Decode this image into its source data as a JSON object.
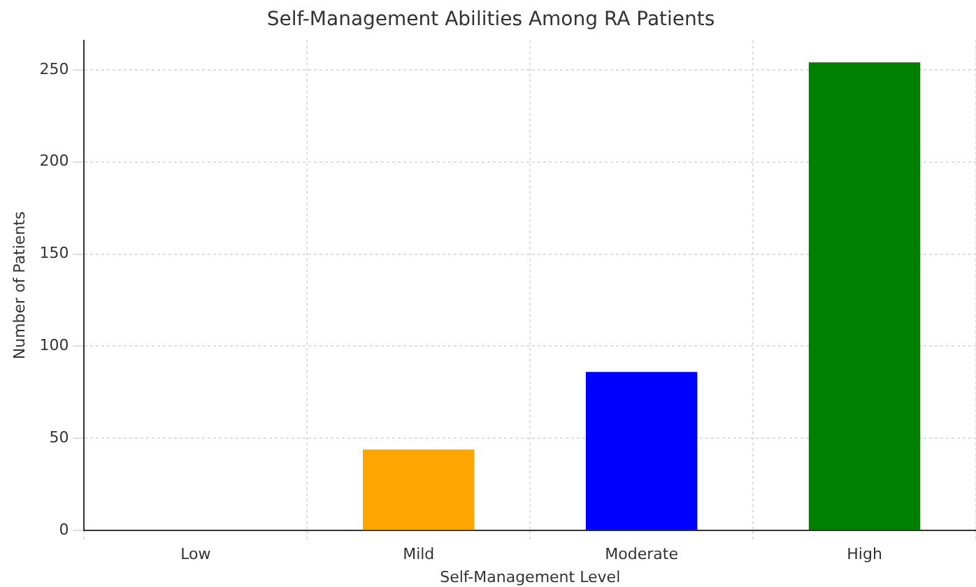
{
  "chart_data": {
    "type": "bar",
    "title": "Self-Management Abilities Among RA Patients",
    "xlabel": "Self-Management Level",
    "ylabel": "Number of Patients",
    "categories": [
      "Low",
      "Mild",
      "Moderate",
      "High"
    ],
    "values": [
      0,
      44,
      86,
      254
    ],
    "colors": [
      "#ff0000",
      "#ffa500",
      "#0000ff",
      "#008000"
    ],
    "ylim": [
      0,
      266
    ],
    "yticks": [
      0,
      50,
      100,
      150,
      200,
      250
    ],
    "grid": true
  }
}
